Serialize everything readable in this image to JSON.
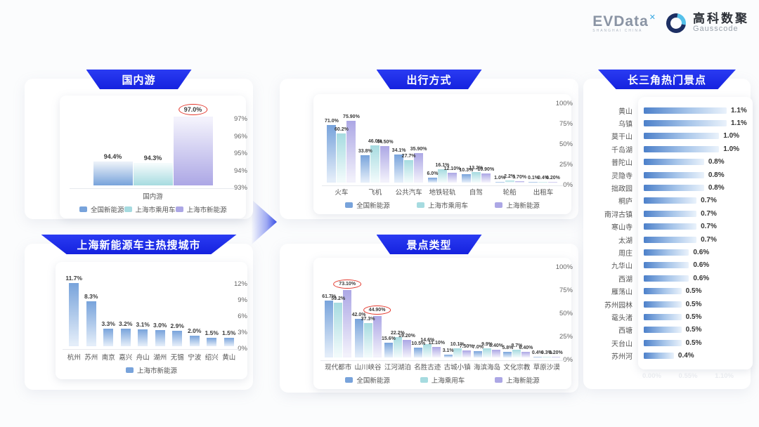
{
  "logo": {
    "evdata_text": "EVData",
    "evdata_mark": "✕",
    "evdata_subtext": "SHANGHAI CHINA",
    "gausscode_cn": "高科数聚",
    "gausscode_en": "Gausscode"
  },
  "colors": {
    "banner_blue": "#1E2BE6",
    "series": [
      "#78A3DB",
      "#A6DBE0",
      "#ACA7E5"
    ],
    "hbar_blue": "#4C80CA",
    "annotation_red": "#E3362B"
  },
  "chart_data": [
    {
      "id": "domestic",
      "type": "bar",
      "title": "国内游",
      "x_label": "国内游",
      "y_ticks": [
        "97%",
        "96%",
        "95%",
        "94%",
        "93%"
      ],
      "ylim": [
        93,
        97
      ],
      "grid": false,
      "legend": [
        "全国新能源",
        "上海市乘用车",
        "上海市新能源"
      ],
      "categories": [
        "国内游"
      ],
      "series": [
        {
          "name": "全国新能源",
          "values": [
            94.4
          ],
          "labels": [
            "94.4%"
          ]
        },
        {
          "name": "上海市乘用车",
          "values": [
            94.3
          ],
          "labels": [
            "94.3%"
          ]
        },
        {
          "name": "上海市新能源",
          "values": [
            97.0
          ],
          "labels": [
            "97.0%"
          ],
          "circled": [
            0
          ]
        }
      ]
    },
    {
      "id": "cities",
      "type": "bar",
      "title": "上海新能源车主热搜城市",
      "y_ticks": [
        "12%",
        "9%",
        "6%",
        "3%",
        "0%"
      ],
      "ylim": [
        0,
        12
      ],
      "grid": false,
      "legend": [
        "上海市新能源"
      ],
      "categories": [
        "杭州",
        "苏州",
        "南京",
        "嘉兴",
        "舟山",
        "湖州",
        "无锡",
        "宁波",
        "绍兴",
        "黄山"
      ],
      "series": [
        {
          "name": "上海市新能源",
          "values": [
            11.7,
            8.3,
            3.3,
            3.2,
            3.1,
            3.0,
            2.9,
            2.0,
            1.5,
            1.5
          ],
          "labels": [
            "11.7%",
            "8.3%",
            "3.3%",
            "3.2%",
            "3.1%",
            "3.0%",
            "2.9%",
            "2.0%",
            "1.5%",
            "1.5%"
          ]
        }
      ]
    },
    {
      "id": "transport",
      "type": "bar",
      "title": "出行方式",
      "y_ticks": [
        "100%",
        "75%",
        "50%",
        "25%",
        "0%"
      ],
      "ylim": [
        0,
        100
      ],
      "grid": false,
      "legend": [
        "全国新能源",
        "上海市乘用车",
        "上海新能源"
      ],
      "categories": [
        "火车",
        "飞机",
        "公共汽车",
        "地铁轻轨",
        "自驾",
        "轮船",
        "出租车"
      ],
      "series": [
        {
          "name": "全国新能源",
          "values": [
            71.0,
            33.8,
            34.1,
            6.0,
            10.3,
            1.0,
            0.1
          ],
          "labels": [
            "71.0%",
            "33.8%",
            "34.1%",
            "6.0%",
            "10.3%",
            "1.0%",
            "0.1%"
          ]
        },
        {
          "name": "上海市乘用车",
          "values": [
            60.2,
            46.0,
            27.7,
            16.1,
            13.2,
            2.2,
            0.4
          ],
          "labels": [
            "60.2%",
            "46.0%",
            "27.7%",
            "16.1%",
            "13.2%",
            "2.2%",
            "0.4%"
          ]
        },
        {
          "name": "上海新能源",
          "values": [
            75.9,
            44.5,
            35.9,
            12.1,
            10.9,
            1.7,
            0.2
          ],
          "labels": [
            "75.90%",
            "44.50%",
            "35.90%",
            "12.10%",
            "10.90%",
            "1.70%",
            "0.20%"
          ]
        }
      ]
    },
    {
      "id": "attraction",
      "type": "bar",
      "title": "景点类型",
      "y_ticks": [
        "100%",
        "75%",
        "50%",
        "25%",
        "0%"
      ],
      "ylim": [
        0,
        100
      ],
      "grid": false,
      "legend": [
        "全国新能源",
        "上海乘用车",
        "上海新能源"
      ],
      "categories": [
        "现代都市",
        "山川峡谷",
        "江河湖泊",
        "名胜古迹",
        "古城小镇",
        "海滨海岛",
        "文化宗教",
        "草原沙漠"
      ],
      "series": [
        {
          "name": "全国新能源",
          "values": [
            61.7,
            42.0,
            15.6,
            10.5,
            3.1,
            7.0,
            5.8,
            0.4
          ],
          "labels": [
            "61.7%",
            "42.0%",
            "15.6%",
            "10.5%",
            "3.1%",
            "7.0%",
            "5.8%",
            "0.4%"
          ]
        },
        {
          "name": "上海乘用车",
          "values": [
            59.2,
            37.3,
            22.2,
            14.6,
            10.1,
            9.9,
            8.7,
            0.3
          ],
          "labels": [
            "59.2%",
            "37.3%",
            "22.2%",
            "14.6%",
            "10.1%",
            "9.9%",
            "8.7%",
            "0.3%"
          ]
        },
        {
          "name": "上海新能源",
          "values": [
            73.1,
            44.9,
            19.2,
            11.1,
            7.5,
            8.4,
            6.4,
            0.2
          ],
          "labels": [
            "73.10%",
            "44.90%",
            "19.20%",
            "11.10%",
            "7.50%",
            "8.40%",
            "6.40%",
            "0.20%"
          ],
          "circled": [
            0,
            1
          ]
        }
      ]
    },
    {
      "id": "spots",
      "type": "bar-horizontal",
      "title": "长三角热门景点",
      "xlim": [
        0,
        1.1
      ],
      "x_ticks": [
        "0.00%",
        "0.55%",
        "1.10%"
      ],
      "items": [
        {
          "name": "黄山",
          "value": 1.1,
          "label": "1.1%"
        },
        {
          "name": "乌镇",
          "value": 1.1,
          "label": "1.1%"
        },
        {
          "name": "莫干山",
          "value": 1.0,
          "label": "1.0%"
        },
        {
          "name": "千岛湖",
          "value": 1.0,
          "label": "1.0%"
        },
        {
          "name": "普陀山",
          "value": 0.8,
          "label": "0.8%"
        },
        {
          "name": "灵隐寺",
          "value": 0.8,
          "label": "0.8%"
        },
        {
          "name": "拙政园",
          "value": 0.8,
          "label": "0.8%"
        },
        {
          "name": "桐庐",
          "value": 0.7,
          "label": "0.7%"
        },
        {
          "name": "南浔古镇",
          "value": 0.7,
          "label": "0.7%"
        },
        {
          "name": "寒山寺",
          "value": 0.7,
          "label": "0.7%"
        },
        {
          "name": "太湖",
          "value": 0.7,
          "label": "0.7%"
        },
        {
          "name": "周庄",
          "value": 0.6,
          "label": "0.6%"
        },
        {
          "name": "九华山",
          "value": 0.6,
          "label": "0.6%"
        },
        {
          "name": "西湖",
          "value": 0.6,
          "label": "0.6%"
        },
        {
          "name": "雁荡山",
          "value": 0.5,
          "label": "0.5%"
        },
        {
          "name": "苏州园林",
          "value": 0.5,
          "label": "0.5%"
        },
        {
          "name": "鼋头渚",
          "value": 0.5,
          "label": "0.5%"
        },
        {
          "name": "西塘",
          "value": 0.5,
          "label": "0.5%"
        },
        {
          "name": "天台山",
          "value": 0.5,
          "label": "0.5%"
        },
        {
          "name": "苏州河",
          "value": 0.4,
          "label": "0.4%"
        }
      ]
    }
  ]
}
